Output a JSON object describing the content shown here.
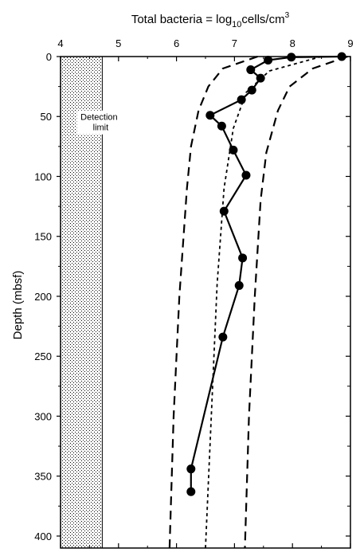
{
  "chart_data": {
    "type": "line",
    "title_parts": {
      "prefix": "Total bacteria = log",
      "subscript": "10",
      "middle": "cells/cm",
      "superscript": "3"
    },
    "ylabel": "Depth (mbsf)",
    "xlim": [
      4,
      9
    ],
    "ylim": [
      0,
      410
    ],
    "y_inverted": true,
    "x_ticks": [
      4,
      5,
      6,
      7,
      8,
      9
    ],
    "y_ticks": [
      0,
      50,
      100,
      150,
      200,
      250,
      300,
      350,
      400
    ],
    "detection_limit": {
      "label_line1": "Detection",
      "label_line2": "limit",
      "x_from": 4,
      "x_to": 4.72
    },
    "series": [
      {
        "style": "solid-markers",
        "points": [
          {
            "x": 8.85,
            "y": 0
          },
          {
            "x": 7.98,
            "y": 0.5
          },
          {
            "x": 7.58,
            "y": 3
          },
          {
            "x": 7.28,
            "y": 11
          },
          {
            "x": 7.45,
            "y": 18
          },
          {
            "x": 7.3,
            "y": 28
          },
          {
            "x": 7.12,
            "y": 36
          },
          {
            "x": 6.58,
            "y": 49
          },
          {
            "x": 6.78,
            "y": 58
          },
          {
            "x": 6.98,
            "y": 78
          },
          {
            "x": 7.2,
            "y": 99
          },
          {
            "x": 6.82,
            "y": 129
          },
          {
            "x": 7.14,
            "y": 168
          },
          {
            "x": 7.08,
            "y": 191
          },
          {
            "x": 6.8,
            "y": 234
          },
          {
            "x": 6.25,
            "y": 344
          },
          {
            "x": 6.25,
            "y": 363
          }
        ]
      },
      {
        "style": "short-dash",
        "points": [
          {
            "x": 8.5,
            "y": 0
          },
          {
            "x": 7.6,
            "y": 12
          },
          {
            "x": 7.2,
            "y": 30
          },
          {
            "x": 6.98,
            "y": 60
          },
          {
            "x": 6.82,
            "y": 110
          },
          {
            "x": 6.7,
            "y": 190
          },
          {
            "x": 6.6,
            "y": 300
          },
          {
            "x": 6.5,
            "y": 410
          }
        ]
      },
      {
        "style": "long-dash",
        "points": [
          {
            "x": 7.4,
            "y": 0
          },
          {
            "x": 6.8,
            "y": 10
          },
          {
            "x": 6.55,
            "y": 25
          },
          {
            "x": 6.38,
            "y": 45
          },
          {
            "x": 6.25,
            "y": 75
          },
          {
            "x": 6.18,
            "y": 110
          },
          {
            "x": 6.05,
            "y": 200
          },
          {
            "x": 5.95,
            "y": 300
          },
          {
            "x": 5.88,
            "y": 410
          }
        ]
      },
      {
        "style": "long-dash",
        "points": [
          {
            "x": 8.95,
            "y": 0
          },
          {
            "x": 8.35,
            "y": 10
          },
          {
            "x": 7.95,
            "y": 25
          },
          {
            "x": 7.75,
            "y": 45
          },
          {
            "x": 7.55,
            "y": 80
          },
          {
            "x": 7.45,
            "y": 120
          },
          {
            "x": 7.35,
            "y": 200
          },
          {
            "x": 7.25,
            "y": 300
          },
          {
            "x": 7.18,
            "y": 410
          }
        ]
      }
    ]
  }
}
